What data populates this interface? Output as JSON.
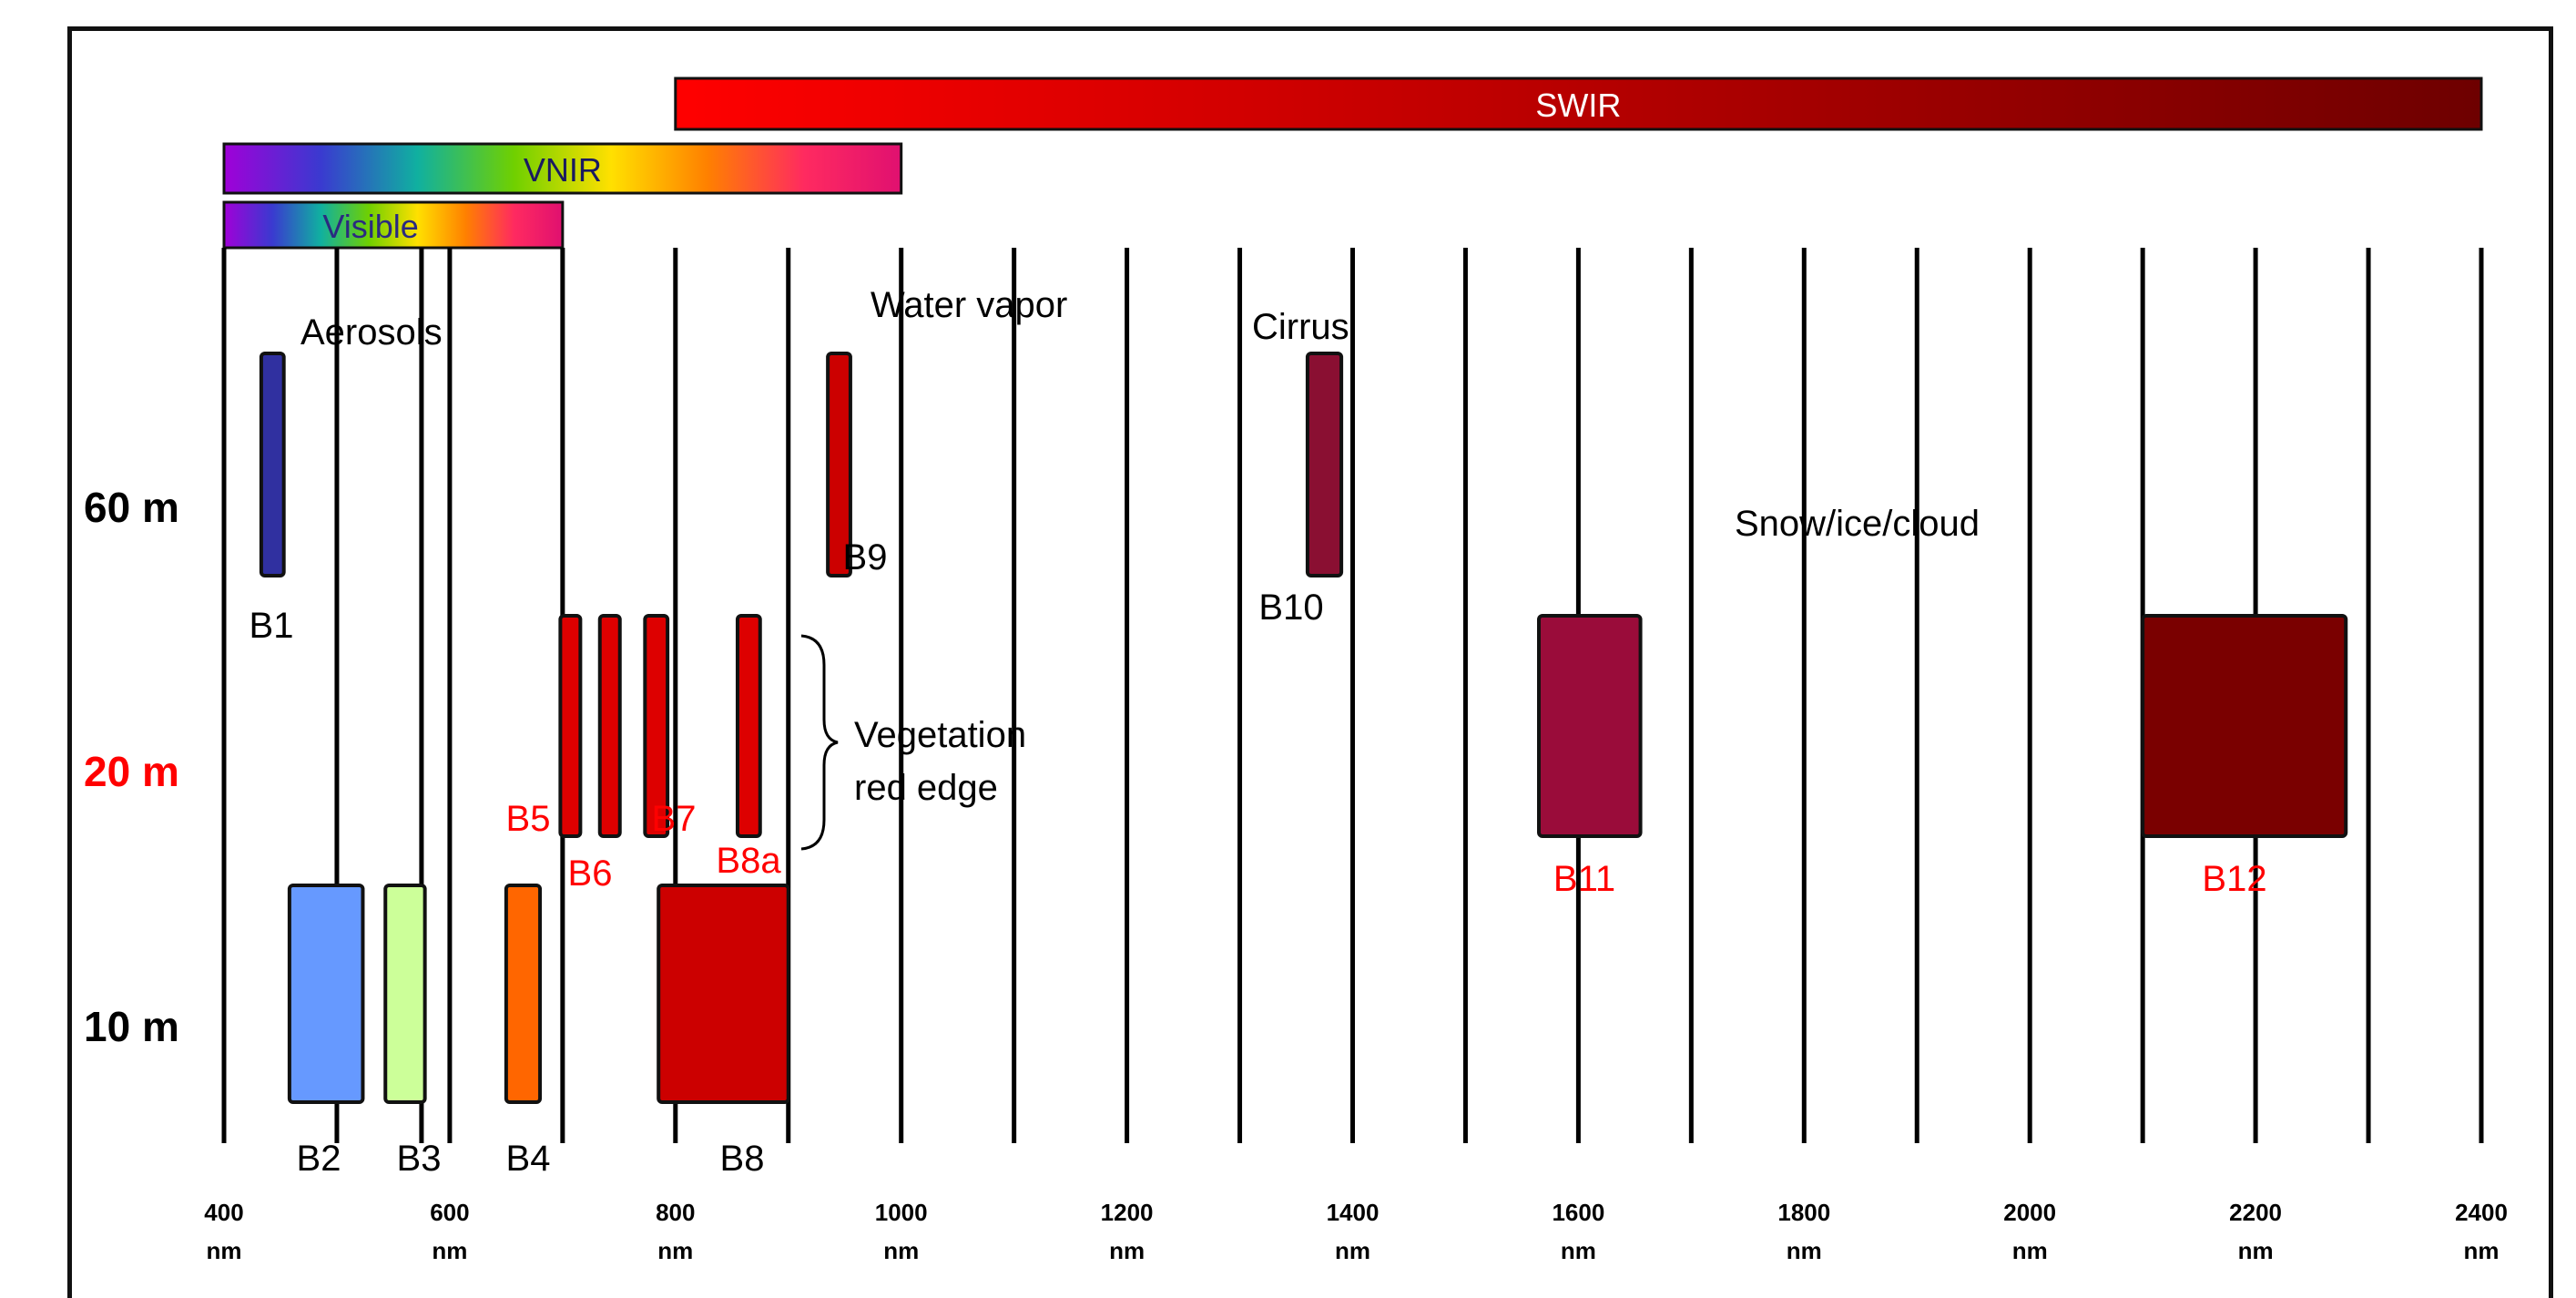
{
  "chart_data": {
    "type": "bar",
    "x_axis": {
      "ticks": [
        {
          "value": 400,
          "label_top": "400",
          "label_bottom": "nm"
        },
        {
          "value": 600,
          "label_top": "600",
          "label_bottom": "nm"
        },
        {
          "value": 800,
          "label_top": "800",
          "label_bottom": "nm"
        },
        {
          "value": 1000,
          "label_top": "1000",
          "label_bottom": "nm"
        },
        {
          "value": 1200,
          "label_top": "1200",
          "label_bottom": "nm"
        },
        {
          "value": 1400,
          "label_top": "1400",
          "label_bottom": "nm"
        },
        {
          "value": 1600,
          "label_top": "1600",
          "label_bottom": "nm"
        },
        {
          "value": 1800,
          "label_top": "1800",
          "label_bottom": "nm"
        },
        {
          "value": 2000,
          "label_top": "2000",
          "label_bottom": "nm"
        },
        {
          "value": 2200,
          "label_top": "2200",
          "label_bottom": "nm"
        },
        {
          "value": 2400,
          "label_top": "2400",
          "label_bottom": "nm"
        }
      ],
      "range": [
        400,
        2400
      ]
    },
    "resolution_rows": [
      {
        "label": "60 m",
        "color": "#000000"
      },
      {
        "label": "20 m",
        "color": "#ff0000"
      },
      {
        "label": "10 m",
        "color": "#000000"
      }
    ],
    "spectral_regions": [
      {
        "name": "SWIR",
        "start": 800,
        "end": 2400,
        "colors": [
          "#ff0000",
          "#6e0000"
        ]
      },
      {
        "name": "VNIR",
        "start": 400,
        "end": 1000,
        "colors": [
          "#a000d8",
          "#3a3ad0",
          "#10b0a0",
          "#70d000",
          "#ffe000",
          "#ff8000",
          "#ff2a60",
          "#e01070"
        ]
      },
      {
        "name": "Visible",
        "start": 400,
        "end": 700,
        "colors": [
          "#a000d8",
          "#3a3ad0",
          "#10b0a0",
          "#70d000",
          "#ffe000",
          "#ff8000",
          "#ff2a60",
          "#e01070"
        ]
      }
    ],
    "bands": [
      {
        "name": "B1",
        "resolution": "60 m",
        "start": 433,
        "end": 453,
        "color": "#3030a0",
        "label_color": "#000000"
      },
      {
        "name": "B9",
        "resolution": "60 m",
        "start": 935,
        "end": 955,
        "color": "#cc0000",
        "label_color": "#000000"
      },
      {
        "name": "B10",
        "resolution": "60 m",
        "start": 1360,
        "end": 1390,
        "color": "#8a0f32",
        "label_color": "#000000"
      },
      {
        "name": "B5",
        "resolution": "20 m",
        "start": 698,
        "end": 713,
        "color": "#dd0000",
        "label_color": "#ff0000"
      },
      {
        "name": "B6",
        "resolution": "20 m",
        "start": 733,
        "end": 748,
        "color": "#dd0000",
        "label_color": "#ff0000"
      },
      {
        "name": "B7",
        "resolution": "20 m",
        "start": 773,
        "end": 793,
        "color": "#dd0000",
        "label_color": "#ff0000"
      },
      {
        "name": "B8a",
        "resolution": "20 m",
        "start": 855,
        "end": 875,
        "color": "#dd0000",
        "label_color": "#ff0000"
      },
      {
        "name": "B11",
        "resolution": "20 m",
        "start": 1565,
        "end": 1655,
        "color": "#9a0c3a",
        "label_color": "#ff0000"
      },
      {
        "name": "B12",
        "resolution": "20 m",
        "start": 2100,
        "end": 2280,
        "color": "#7a0000",
        "label_color": "#ff0000"
      },
      {
        "name": "B2",
        "resolution": "10 m",
        "start": 458,
        "end": 523,
        "color": "#6699ff",
        "label_color": "#000000"
      },
      {
        "name": "B3",
        "resolution": "10 m",
        "start": 543,
        "end": 578,
        "color": "#ccff99",
        "label_color": "#000000"
      },
      {
        "name": "B4",
        "resolution": "10 m",
        "start": 650,
        "end": 680,
        "color": "#ff6600",
        "label_color": "#000000"
      },
      {
        "name": "B8",
        "resolution": "10 m",
        "start": 785,
        "end": 900,
        "color": "#cc0000",
        "label_color": "#000000"
      }
    ],
    "annotations": [
      {
        "text": "Aerosols",
        "anchor": 465
      },
      {
        "text": "Water vapor",
        "anchor": 915
      },
      {
        "text": "Cirrus",
        "anchor": 1355
      },
      {
        "text": "Snow/ice/cloud",
        "anchor": 1705
      },
      {
        "text": "Vegetation",
        "anchor": 940
      },
      {
        "text": "red edge",
        "anchor": 940
      }
    ]
  }
}
